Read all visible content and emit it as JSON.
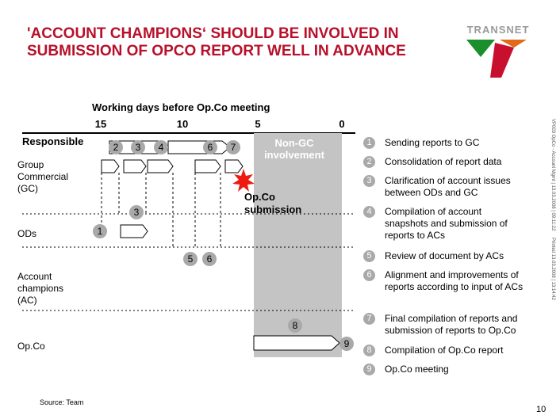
{
  "title": "'ACCOUNT CHAMPIONS‘ SHOULD BE INVOLVED IN SUBMISSION OF OPCO REPORT WELL IN ADVANCE",
  "logo": {
    "text": "TRANSNET",
    "colors": [
      "#1a8f2c",
      "#e06a1a",
      "#c8102e"
    ]
  },
  "axis": {
    "title": "Working days before Op.Co meeting",
    "ticks": [
      "15",
      "10",
      "5",
      "0"
    ]
  },
  "rows": {
    "responsible": "Responsible",
    "gc": "Group Commercial (GC)",
    "ods": "ODs",
    "ac": "Account champions (AC)",
    "opco": "Op.Co"
  },
  "labels": {
    "non_gc": "Non-GC involvement",
    "opco_submission": "Op.Co submission"
  },
  "steps": {
    "gc": [
      "2",
      "3",
      "4",
      "6",
      "7"
    ],
    "ods": [
      "3",
      "1"
    ],
    "ac": [
      "5",
      "6"
    ],
    "opco": [
      "8",
      "9"
    ]
  },
  "legend": [
    {
      "num": "1",
      "text": "Sending reports to GC"
    },
    {
      "num": "2",
      "text": "Consolidation of report data"
    },
    {
      "num": "3",
      "text": "Clarification of account issues between ODs and GC"
    },
    {
      "num": "4",
      "text": "Compilation of account snapshots and submission of reports to ACs"
    },
    {
      "num": "5",
      "text": "Review of document by ACs"
    },
    {
      "num": "6",
      "text": "Alignment and improvements of reports according to input of ACs"
    },
    {
      "num": "7",
      "text": "Final compilation of reports and submission of reports to Op.Co"
    },
    {
      "num": "8",
      "text": "Compilation of Op.Co report"
    },
    {
      "num": "9",
      "text": "Op.Co meeting"
    }
  ],
  "side_text_left": "VP003 OpCo - Account Mgmt | 13.03.2008 | 09:11:22",
  "side_text_right": "Printed 13.03.2008 | 13:14:42",
  "source": "Source: Team",
  "page_number": "10",
  "colors": {
    "title": "#b8102a",
    "band": "#c4c4c4",
    "circle": "#a9a9a9",
    "star": "#ee1c10"
  }
}
